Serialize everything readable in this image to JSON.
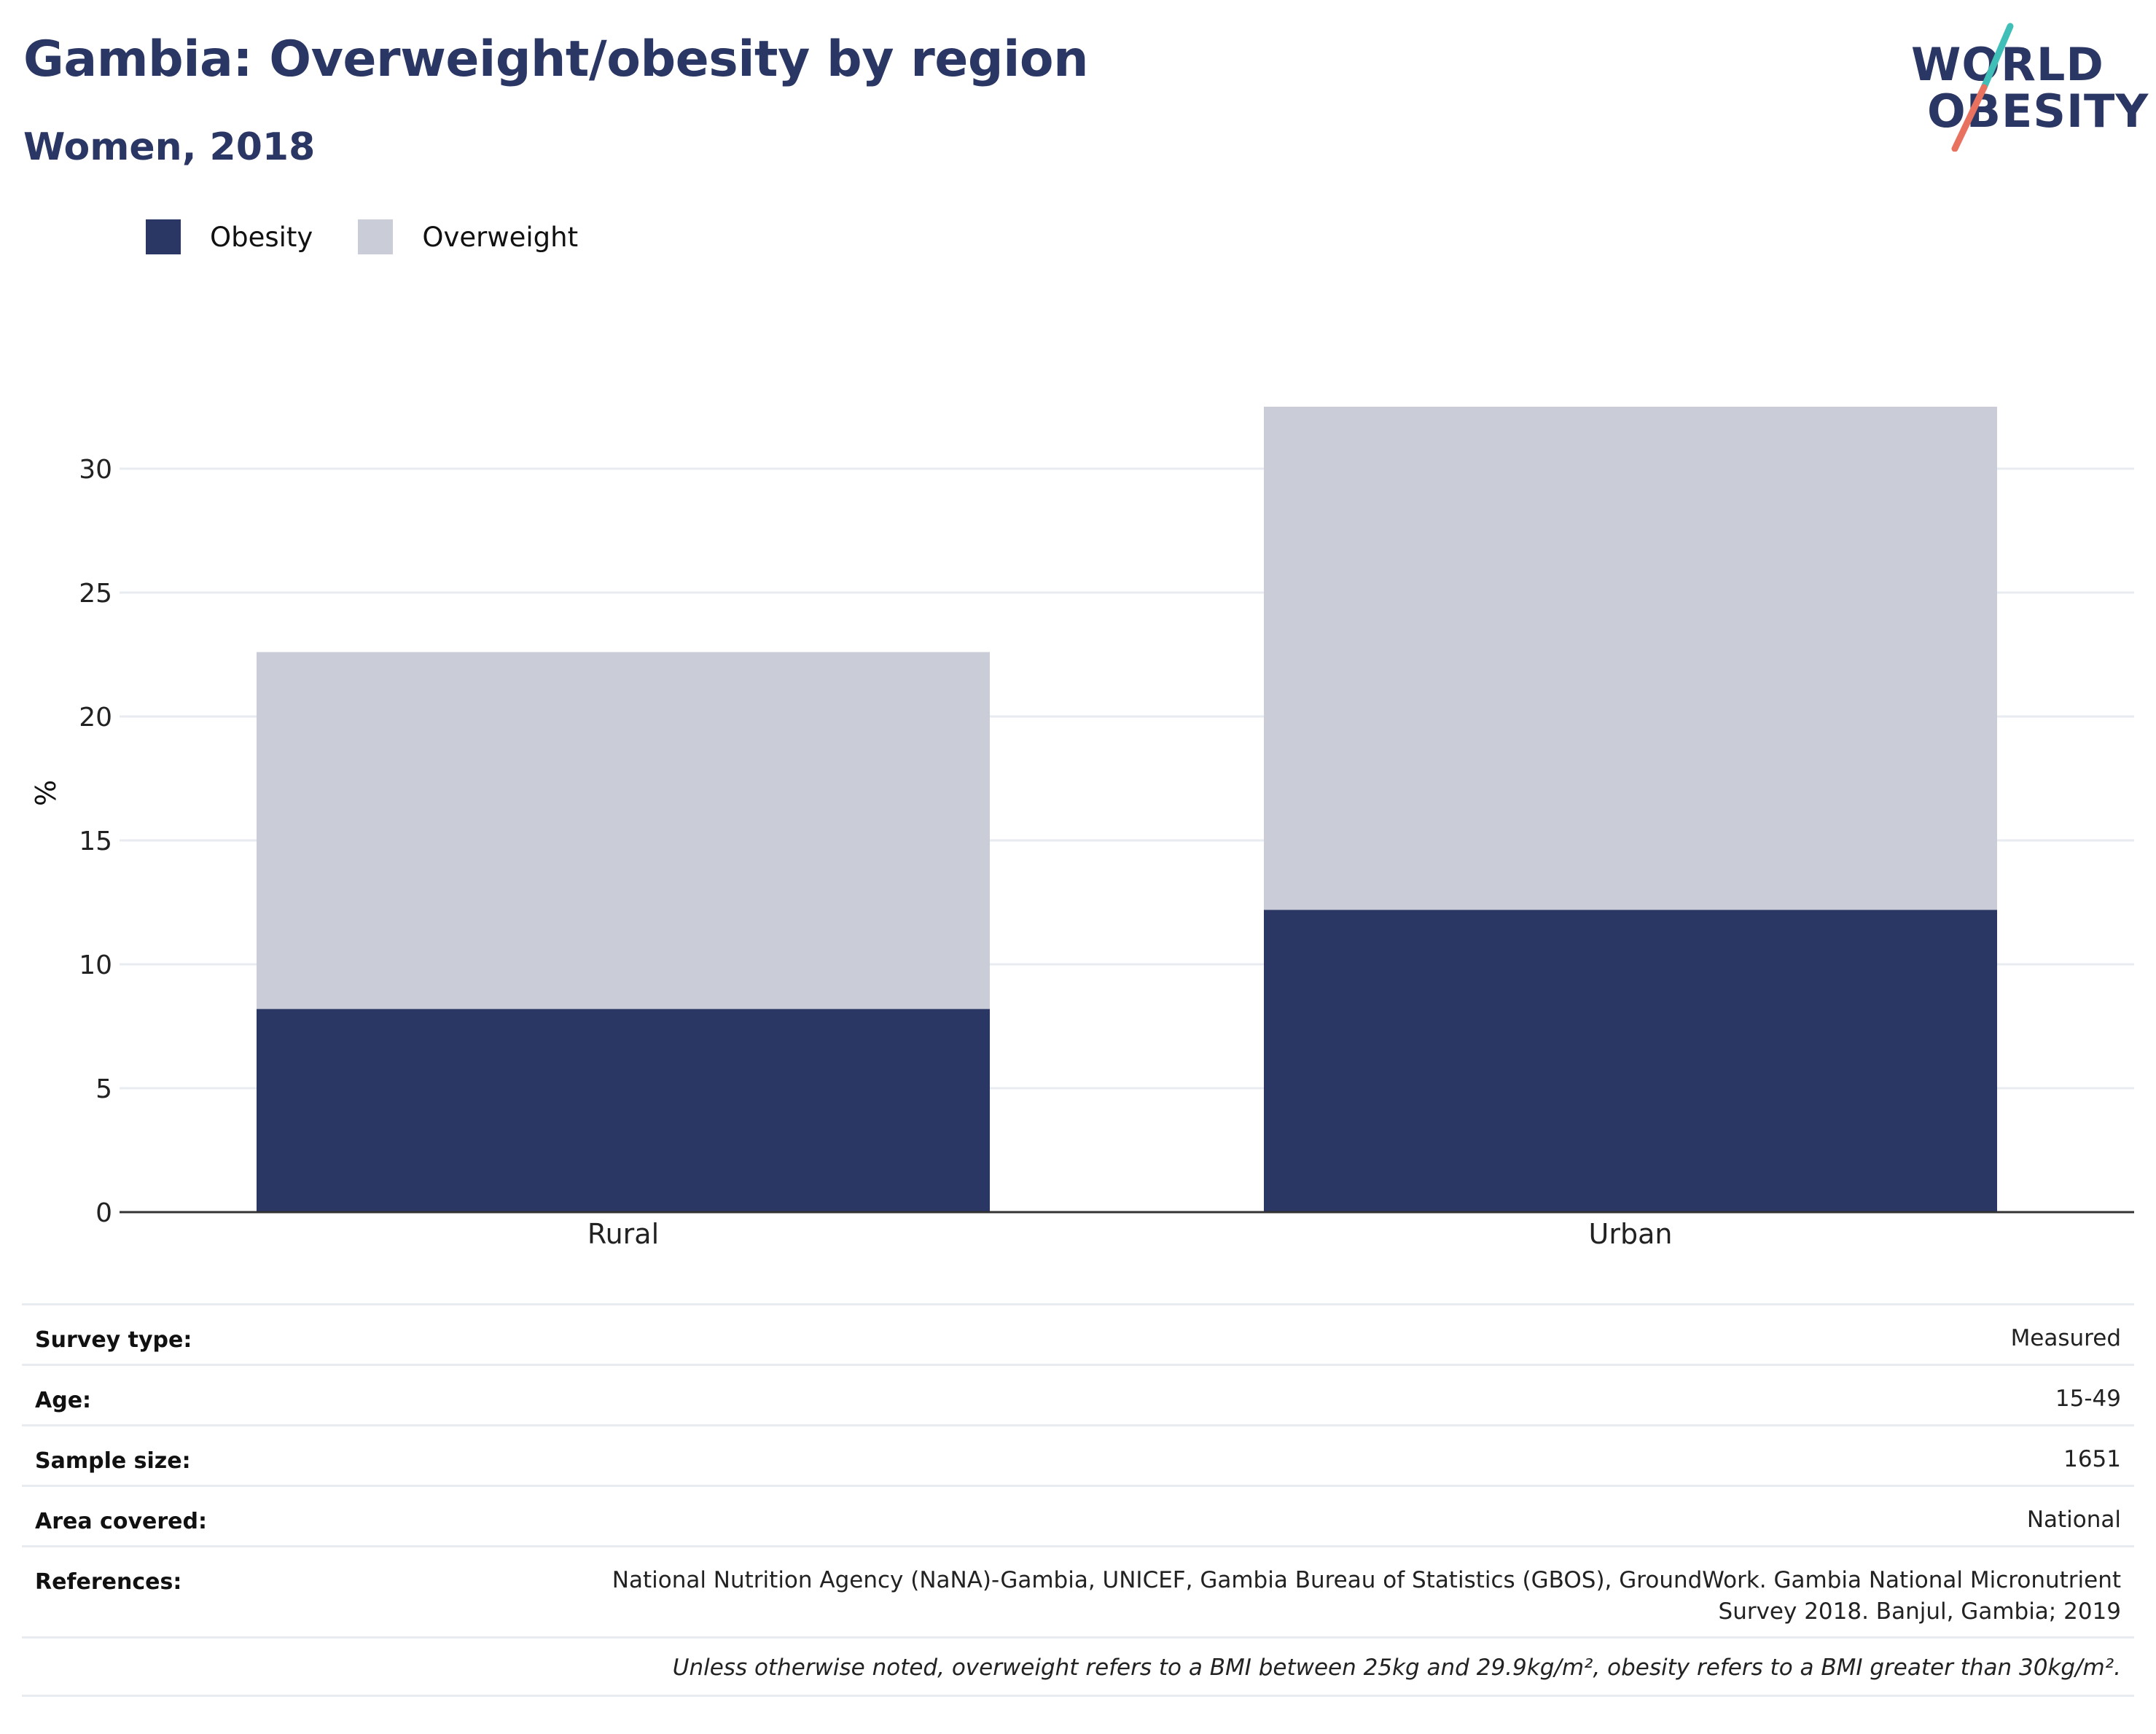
{
  "header": {
    "title": "Gambia: Overweight/obesity by region",
    "subtitle": "Women, 2018"
  },
  "logo": {
    "line1": "WORLD",
    "line2": "OBESITY",
    "accent_colors": [
      "#3fbfb8",
      "#e8725f"
    ]
  },
  "colors": {
    "obesity": "#2a3663",
    "overweight": "#caccd8",
    "gridline": "#e8ebf0",
    "axis": "#333333",
    "title": "#2a3663"
  },
  "legend": [
    {
      "label": "Obesity",
      "color": "#2a3663"
    },
    {
      "label": "Overweight",
      "color": "#caccd8"
    }
  ],
  "chart_data": {
    "type": "bar",
    "stacked": true,
    "categories": [
      "Rural",
      "Urban"
    ],
    "series": [
      {
        "name": "Obesity",
        "values": [
          8.2,
          12.2
        ]
      },
      {
        "name": "Overweight",
        "values": [
          14.4,
          20.3
        ]
      }
    ],
    "ylabel": "%",
    "xlabel": "",
    "ylim": [
      0,
      35
    ],
    "yticks": [
      0,
      5,
      10,
      15,
      20,
      25,
      30
    ],
    "grid": true,
    "legend_position": "top-left"
  },
  "meta": [
    {
      "label": "Survey type:",
      "value": "Measured"
    },
    {
      "label": "Age:",
      "value": "15-49"
    },
    {
      "label": "Sample size:",
      "value": "1651"
    },
    {
      "label": "Area covered:",
      "value": "National"
    },
    {
      "label": "References:",
      "value_lines": [
        "National Nutrition Agency (NaNA)-Gambia, UNICEF, Gambia Bureau of Statistics (GBOS), GroundWork. Gambia National Micronutrient",
        "Survey 2018. Banjul, Gambia; 2019"
      ]
    }
  ],
  "footnote": "Unless otherwise noted, overweight refers to a BMI between 25kg and 29.9kg/m², obesity refers to a BMI greater than 30kg/m²."
}
